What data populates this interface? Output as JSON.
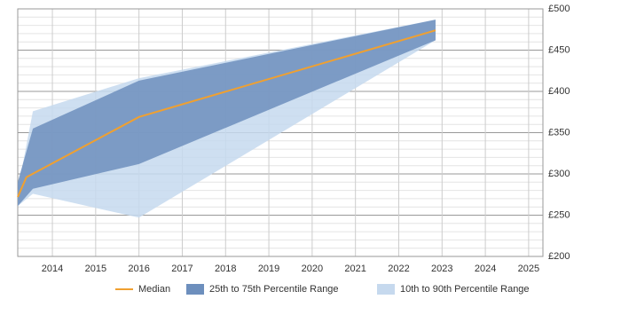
{
  "chart_data": {
    "type": "band-line",
    "xlim": [
      2013.2,
      2025.33
    ],
    "xticks": [
      2014,
      2015,
      2016,
      2017,
      2018,
      2019,
      2020,
      2021,
      2022,
      2023,
      2024,
      2025
    ],
    "ylim": [
      200,
      500
    ],
    "yticks": [
      {
        "value": 200,
        "label": "£200"
      },
      {
        "value": 250,
        "label": "£250"
      },
      {
        "value": 300,
        "label": "£300"
      },
      {
        "value": 350,
        "label": "£350"
      },
      {
        "value": 400,
        "label": "£400"
      },
      {
        "value": 450,
        "label": "£450"
      },
      {
        "value": 500,
        "label": "£500"
      }
    ],
    "yminorticks": [
      210,
      220,
      230,
      240,
      260,
      270,
      280,
      290,
      310,
      320,
      330,
      340,
      360,
      370,
      380,
      390,
      410,
      420,
      430,
      440,
      460,
      470,
      480,
      490
    ],
    "grid": true,
    "series": [
      {
        "name": "10th to 90th Percentile Range",
        "kind": "band",
        "color": "#c6d9ee",
        "x": [
          2013.2,
          2013.55,
          2016,
          2022.85
        ],
        "upper": [
          280,
          376,
          416,
          487
        ],
        "lower": [
          261,
          276,
          247,
          462
        ]
      },
      {
        "name": "25th to 75th Percentile Range",
        "kind": "band",
        "color": "#6d8fbd",
        "x": [
          2013.2,
          2013.55,
          2016,
          2022.85
        ],
        "upper": [
          290,
          355,
          413,
          487
        ],
        "lower": [
          261,
          282,
          312,
          462
        ]
      },
      {
        "name": "Median",
        "kind": "line",
        "color": "#f0a030",
        "x": [
          2013.2,
          2013.4,
          2016,
          2022.85
        ],
        "values": [
          272,
          296,
          369,
          474
        ]
      }
    ],
    "legend_order": [
      2,
      1,
      0
    ]
  }
}
